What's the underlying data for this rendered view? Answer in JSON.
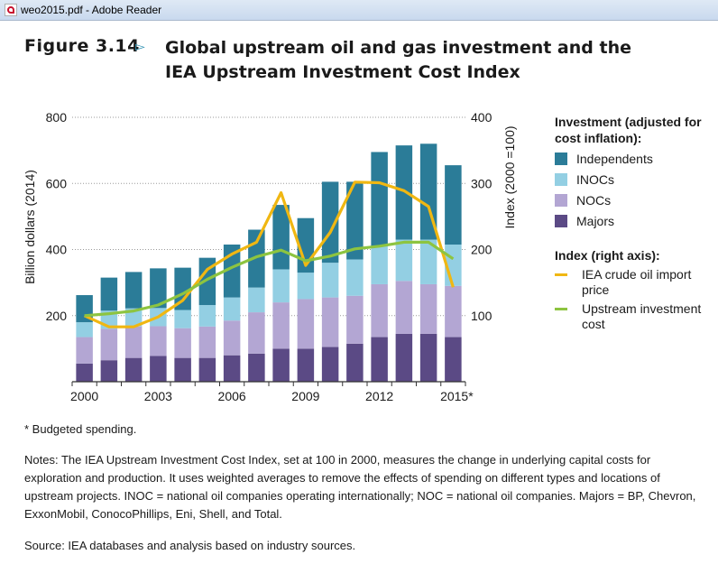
{
  "window": {
    "title": "weo2015.pdf - Adobe Reader",
    "icon": "pdf-file-icon"
  },
  "figure": {
    "label": "Figure 3.14",
    "arrow": "▻",
    "title": "Global upstream oil and gas investment and the IEA Upstream Investment Cost Index"
  },
  "legend": {
    "investment_header": "Investment (adjusted for cost inflation):",
    "index_header": "Index (right axis):"
  },
  "footnote": "* Budgeted spending.",
  "notes": "Notes: The IEA Upstream Investment Cost Index, set at 100 in 2000, measures the change in underlying capital costs for exploration and production. It uses weighted averages to remove the effects of spending on different types and locations of upstream projects. INOC = national oil companies operating internationally; NOC = national oil companies. Majors = BP, Chevron, ExxonMobil, ConocoPhillips, Eni, Shell, and Total.",
  "source": "Source: IEA databases and analysis based on industry sources.",
  "chart_data": {
    "type": "bar",
    "stacked": true,
    "categories": [
      "2000",
      "2001",
      "2002",
      "2003",
      "2004",
      "2005",
      "2006",
      "2007",
      "2008",
      "2009",
      "2010",
      "2011",
      "2012",
      "2013",
      "2014",
      "2015*"
    ],
    "x_tick_labels": [
      "2000",
      "2003",
      "2006",
      "2009",
      "2012",
      "2015*"
    ],
    "ylabel": "Billion dollars (2014)",
    "y2label": "Index (2000 =100)",
    "ylim": [
      0,
      800
    ],
    "y_ticks": [
      200,
      400,
      600,
      800
    ],
    "y2lim": [
      0,
      400
    ],
    "y2_ticks": [
      100,
      200,
      300,
      400
    ],
    "grid": "dotted",
    "legend_position": "right",
    "series": [
      {
        "name": "Majors",
        "color": "#5b4a85",
        "values": [
          55,
          65,
          72,
          78,
          72,
          72,
          80,
          85,
          100,
          100,
          105,
          115,
          135,
          145,
          145,
          135
        ]
      },
      {
        "name": "NOCs",
        "color": "#b3a6d3",
        "values": [
          80,
          95,
          95,
          90,
          90,
          95,
          105,
          125,
          140,
          150,
          150,
          145,
          160,
          160,
          150,
          155
        ]
      },
      {
        "name": "INOCs",
        "color": "#93cfe3",
        "values": [
          45,
          55,
          55,
          55,
          55,
          65,
          70,
          75,
          100,
          80,
          105,
          110,
          115,
          125,
          135,
          125
        ]
      },
      {
        "name": "Independents",
        "color": "#2b7c98",
        "values": [
          82,
          100,
          110,
          120,
          128,
          143,
          160,
          175,
          195,
          165,
          245,
          235,
          285,
          285,
          290,
          240
        ]
      }
    ],
    "lines": [
      {
        "name": "IEA crude oil import price",
        "axis": "right",
        "color": "#f0b712",
        "values": [
          100,
          83,
          83,
          98,
          123,
          170,
          193,
          211,
          286,
          176,
          226,
          302,
          301,
          289,
          265,
          143
        ]
      },
      {
        "name": "Upstream investment cost",
        "axis": "right",
        "color": "#8dc440",
        "values": [
          100,
          103,
          107,
          116,
          133,
          155,
          173,
          189,
          199,
          183,
          190,
          201,
          205,
          211,
          211,
          186
        ]
      }
    ]
  }
}
